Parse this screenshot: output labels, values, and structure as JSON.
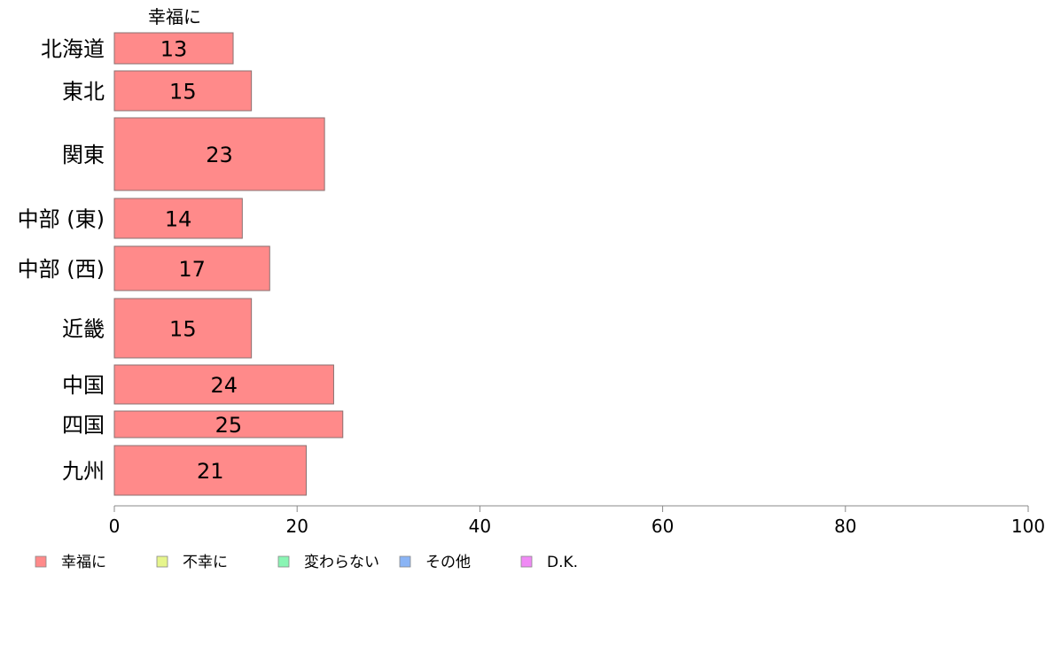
{
  "chart_data": {
    "type": "bar",
    "orientation": "horizontal",
    "stacked": true,
    "column_label": "幸福に",
    "categories": [
      "北海道",
      "東北",
      "関東",
      "中部 (東)",
      "中部 (西)",
      "近畿",
      "中国",
      "四国",
      "九州"
    ],
    "series": [
      {
        "name": "幸福に",
        "values": [
          13,
          15,
          23,
          14,
          17,
          15,
          24,
          25,
          21
        ],
        "color": "#ff8a8a"
      }
    ],
    "xlim": [
      0,
      100
    ],
    "xticks": [
      "0",
      "20",
      "40",
      "60",
      "80",
      "100"
    ],
    "legend": [
      {
        "label": "幸福に",
        "color": "#ff8a8a"
      },
      {
        "label": "不幸に",
        "color": "#e6f58c"
      },
      {
        "label": "変わらない",
        "color": "#8af5b4"
      },
      {
        "label": "その他",
        "color": "#8ab4f5"
      },
      {
        "label": "D.K.",
        "color": "#f08af5"
      }
    ],
    "legend_position": "bottom-left",
    "grid": false
  }
}
